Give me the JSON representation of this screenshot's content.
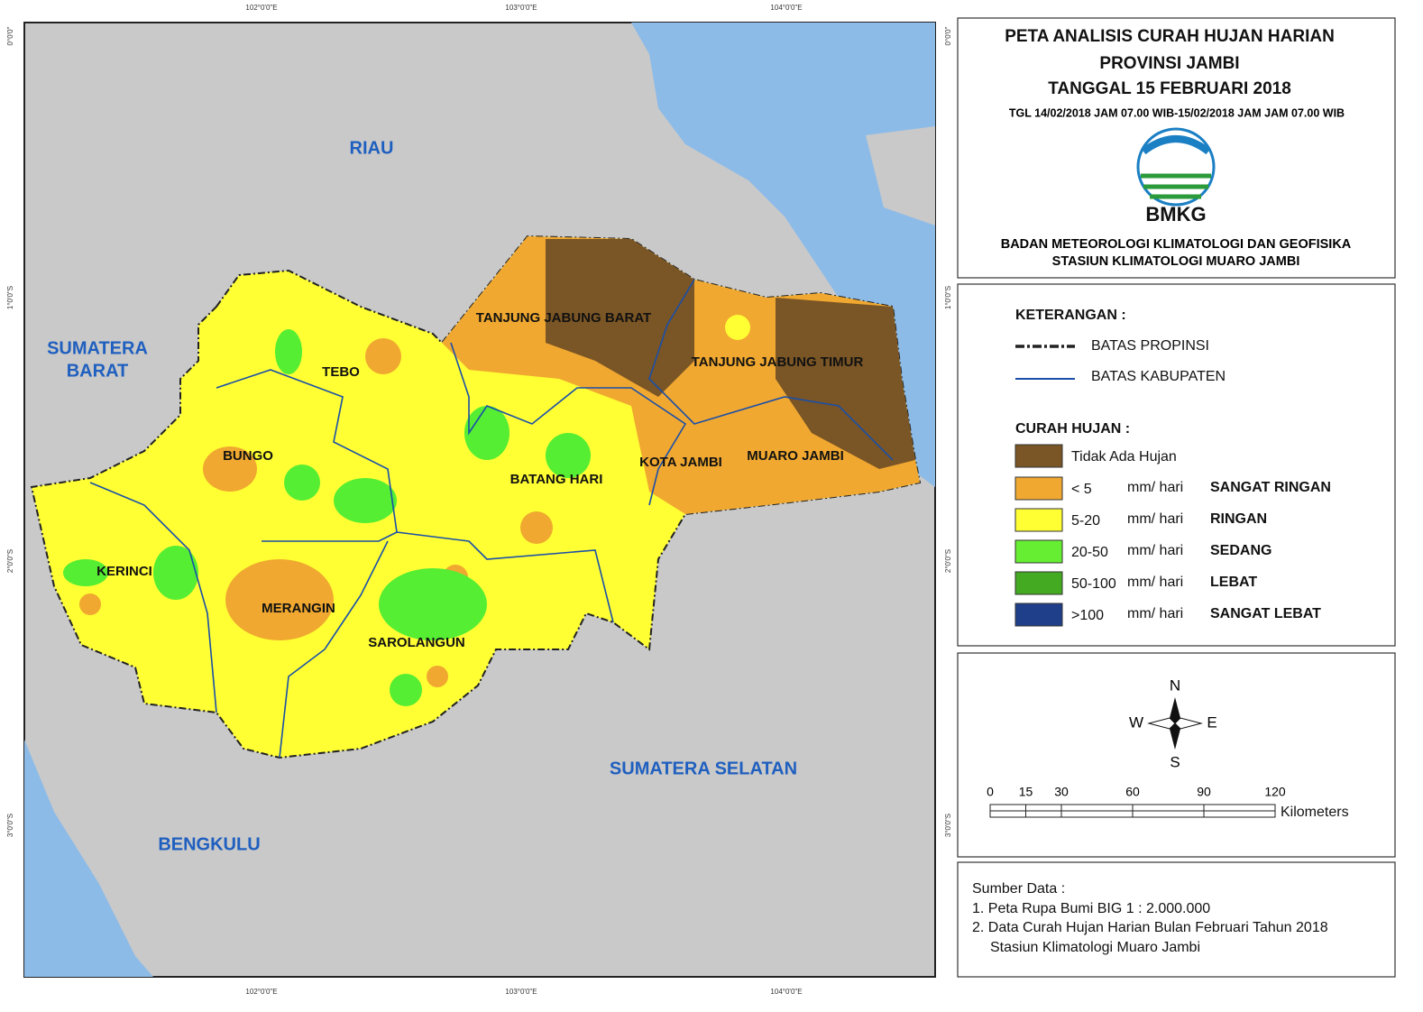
{
  "coords": {
    "top": [
      "102°0'0\"E",
      "103°0'0\"E",
      "104°0'0\"E"
    ],
    "bottom": [
      "102°0'0\"E",
      "103°0'0\"E",
      "104°0'0\"E"
    ],
    "left": [
      "0°0'0\"",
      "1°0'0\"S",
      "2°0'0\"S",
      "3°0'0\"S"
    ],
    "right": [
      "0°0'0\"",
      "1°0'0\"S",
      "2°0'0\"S",
      "3°0'0\"S"
    ]
  },
  "provinces": [
    "RIAU",
    "SUMATERA",
    "BARAT",
    "BENGKULU",
    "SUMATERA SELATAN"
  ],
  "districts": [
    "TEBO",
    "BUNGO",
    "KERINCI",
    "MERANGIN",
    "SAROLANGUN",
    "BATANG HARI",
    "TANJUNG JABUNG BARAT",
    "TANJUNG JABUNG TIMUR",
    "KOTA JAMBI",
    "MUARO JAMBI"
  ],
  "header": {
    "title": [
      "PETA ANALISIS CURAH HUJAN HARIAN",
      "PROVINSI JAMBI",
      "TANGGAL 15 FEBRUARI 2018"
    ],
    "period": "TGL 14/02/2018 JAM 07.00 WIB-15/02/2018 JAM JAM 07.00 WIB",
    "logo": "BMKG",
    "agency": [
      "BADAN METEOROLOGI KLIMATOLOGI DAN GEOFISIKA",
      "STASIUN KLIMATOLOGI MUARO JAMBI"
    ]
  },
  "legend": {
    "heading": "KETERANGAN :",
    "lines": [
      "BATAS PROPINSI",
      "BATAS KABUPATEN"
    ],
    "rain_heading": "CURAH HUJAN :",
    "no_rain": "Tidak Ada Hujan",
    "classes": [
      {
        "range": "< 5",
        "unit": "mm/ hari",
        "category": "SANGAT RINGAN"
      },
      {
        "range": "5-20",
        "unit": "mm/ hari",
        "category": "RINGAN"
      },
      {
        "range": "20-50",
        "unit": "mm/ hari",
        "category": "SEDANG"
      },
      {
        "range": "50-100",
        "unit": "mm/ hari",
        "category": "LEBAT"
      },
      {
        "range": ">100",
        "unit": "mm/ hari",
        "category": "SANGAT LEBAT"
      }
    ]
  },
  "compass": {
    "n": "N",
    "s": "S",
    "e": "E",
    "w": "W"
  },
  "scale": {
    "ticks": [
      0,
      15,
      30,
      60,
      90,
      120
    ],
    "unit": "Kilometers"
  },
  "source": {
    "heading": "Sumber Data :",
    "items": [
      "1. Peta Rupa Bumi BIG 1 : 2.000.000",
      "2. Data Curah Hujan Harian Bulan Februari Tahun 2018",
      "Stasiun Klimatologi Muaro Jambi"
    ]
  }
}
